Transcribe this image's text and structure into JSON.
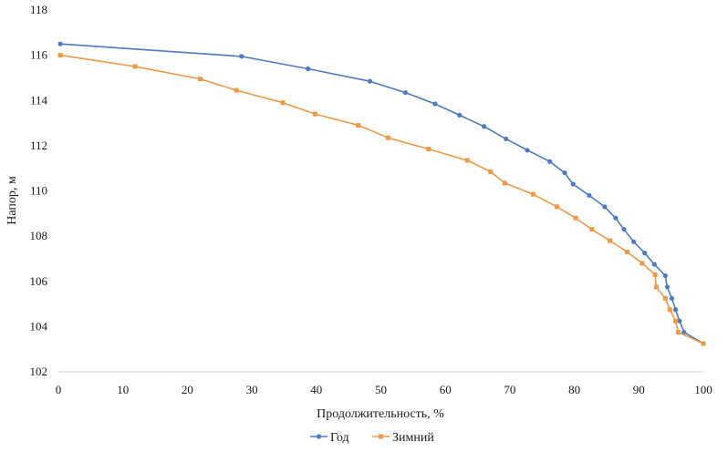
{
  "chart_data": {
    "type": "line",
    "xlabel": "Продолжительность, %",
    "ylabel": "Напор, м",
    "xlim": [
      0,
      100
    ],
    "ylim": [
      102,
      118
    ],
    "xticks": [
      0,
      10,
      20,
      30,
      40,
      50,
      60,
      70,
      80,
      90,
      100
    ],
    "yticks": [
      102,
      104,
      106,
      108,
      110,
      112,
      114,
      116,
      118
    ],
    "grid": false,
    "legend_position": "bottom",
    "series": [
      {
        "name": "Год",
        "color": "#4f7ac0",
        "marker": "circle",
        "x": [
          0.3,
          28.4,
          38.7,
          48.3,
          53.8,
          58.4,
          62.2,
          66.0,
          69.4,
          72.7,
          76.2,
          78.5,
          79.8,
          82.3,
          84.7,
          86.4,
          87.7,
          89.2,
          90.9,
          92.4,
          94.1,
          94.4,
          95.1,
          95.7,
          96.3,
          97.0,
          100.0
        ],
        "y": [
          116.5,
          115.95,
          115.4,
          114.85,
          114.35,
          113.85,
          113.35,
          112.85,
          112.3,
          111.8,
          111.3,
          110.8,
          110.3,
          109.8,
          109.3,
          108.8,
          108.3,
          107.75,
          107.25,
          106.75,
          106.25,
          105.75,
          105.25,
          104.75,
          104.25,
          103.75,
          103.25
        ]
      },
      {
        "name": "Зимний",
        "color": "#ed9a47",
        "marker": "square",
        "x": [
          0.3,
          11.9,
          22.0,
          27.6,
          34.8,
          39.8,
          46.5,
          51.1,
          57.4,
          63.4,
          67.0,
          69.2,
          73.6,
          77.3,
          80.2,
          82.7,
          85.5,
          88.2,
          90.5,
          92.5,
          92.7,
          94.1,
          94.8,
          95.7,
          96.1,
          100.0
        ],
        "y": [
          116.0,
          115.5,
          114.95,
          114.45,
          113.9,
          113.4,
          112.9,
          112.35,
          111.85,
          111.35,
          110.85,
          110.35,
          109.85,
          109.3,
          108.8,
          108.3,
          107.8,
          107.3,
          106.8,
          106.3,
          105.75,
          105.25,
          104.75,
          104.25,
          103.75,
          103.25
        ]
      }
    ]
  }
}
